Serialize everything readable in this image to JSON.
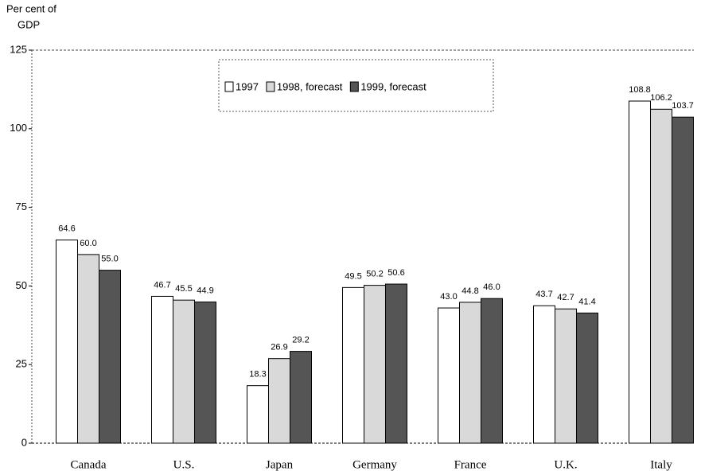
{
  "chart_data": {
    "type": "bar",
    "ylabel": [
      "Per cent of",
      "GDP"
    ],
    "categories": [
      "Canada",
      "U.S.",
      "Japan",
      "Germany",
      "France",
      "U.K.",
      "Italy"
    ],
    "series": [
      {
        "name": "1997",
        "color": "#ffffff",
        "values": [
          64.6,
          46.7,
          18.3,
          49.5,
          43.0,
          43.7,
          108.8
        ],
        "value_labels": [
          "64.6",
          "46.7",
          "18.3",
          "49.5",
          "43.0",
          "43.7",
          "108.8"
        ]
      },
      {
        "name": "1998, forecast",
        "color": "#d9d9d9",
        "values": [
          60.0,
          45.5,
          26.9,
          50.2,
          44.8,
          42.7,
          106.2
        ],
        "value_labels": [
          "60.0",
          "45.5",
          "26.9",
          "50.2",
          "44.8",
          "42.7",
          "106.2"
        ]
      },
      {
        "name": "1999, forecast",
        "color": "#555555",
        "values": [
          55.0,
          44.9,
          29.2,
          50.6,
          46.0,
          41.4,
          103.7
        ],
        "value_labels": [
          "55.0",
          "44.9",
          "29.2",
          "50.6",
          "46.0",
          "41.4",
          "103.7"
        ]
      }
    ],
    "ylim": [
      0,
      125
    ],
    "yticks": [
      0,
      25,
      50,
      75,
      100,
      125
    ],
    "grid": false,
    "legend": "top-center"
  }
}
